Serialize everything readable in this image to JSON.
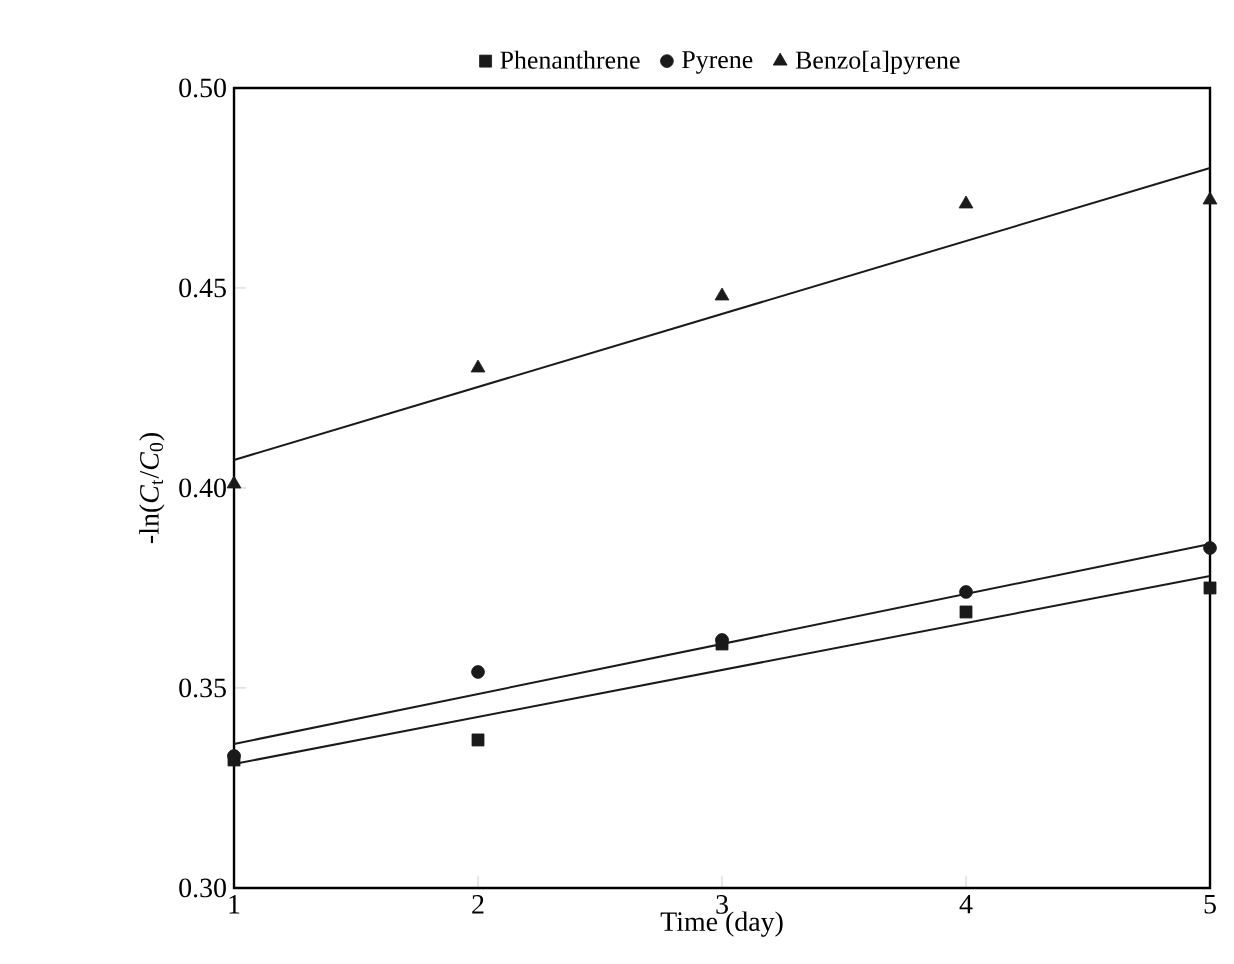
{
  "chart_data": {
    "type": "scatter",
    "xlabel": "Time (day)",
    "ylabel": "-ln(*C*$_{t}$/*C*$_{0}$)",
    "xlim": [
      1,
      5
    ],
    "xticks": [
      1,
      2,
      3,
      4,
      5
    ],
    "ylim": [
      0.3,
      0.5
    ],
    "yticks": [
      {
        "value": 0.3,
        "label": "0.30"
      },
      0.35,
      {
        "value": 0.4,
        "label": "0.40"
      },
      0.45,
      {
        "value": 0.5,
        "label": "0.50"
      }
    ],
    "legend": "top",
    "grid": false,
    "series": [
      {
        "name": "Phenanthrene",
        "marker": "square",
        "color": "#1a1a1a",
        "x": [
          1,
          2,
          3,
          4,
          5
        ],
        "values": [
          0.332,
          0.337,
          0.361,
          0.369,
          0.375
        ]
      },
      {
        "name": "Pyrene",
        "marker": "circle",
        "color": "#1a1a1a",
        "x": [
          1,
          2,
          3,
          4,
          5
        ],
        "values": [
          0.333,
          0.354,
          0.362,
          0.374,
          0.385
        ]
      },
      {
        "name": "Benzo[a]pyrene",
        "marker": "triangle",
        "color": "#1a1a1a",
        "x": [
          1,
          2,
          3,
          4,
          5
        ],
        "values": [
          0.401,
          0.43,
          0.448,
          0.471,
          0.472
        ]
      },
      {
        "type": "line",
        "line_style": "solid",
        "color": "#1a1a1a",
        "x": [
          1,
          5
        ],
        "values": [
          0.331,
          0.378
        ]
      },
      {
        "type": "line",
        "line_style": "solid",
        "color": "#1a1a1a",
        "x": [
          1,
          5
        ],
        "values": [
          0.336,
          0.386
        ]
      },
      {
        "type": "line",
        "line_style": "solid",
        "color": "#1a1a1a",
        "x": [
          1,
          5
        ],
        "values": [
          0.407,
          0.48
        ]
      }
    ]
  }
}
